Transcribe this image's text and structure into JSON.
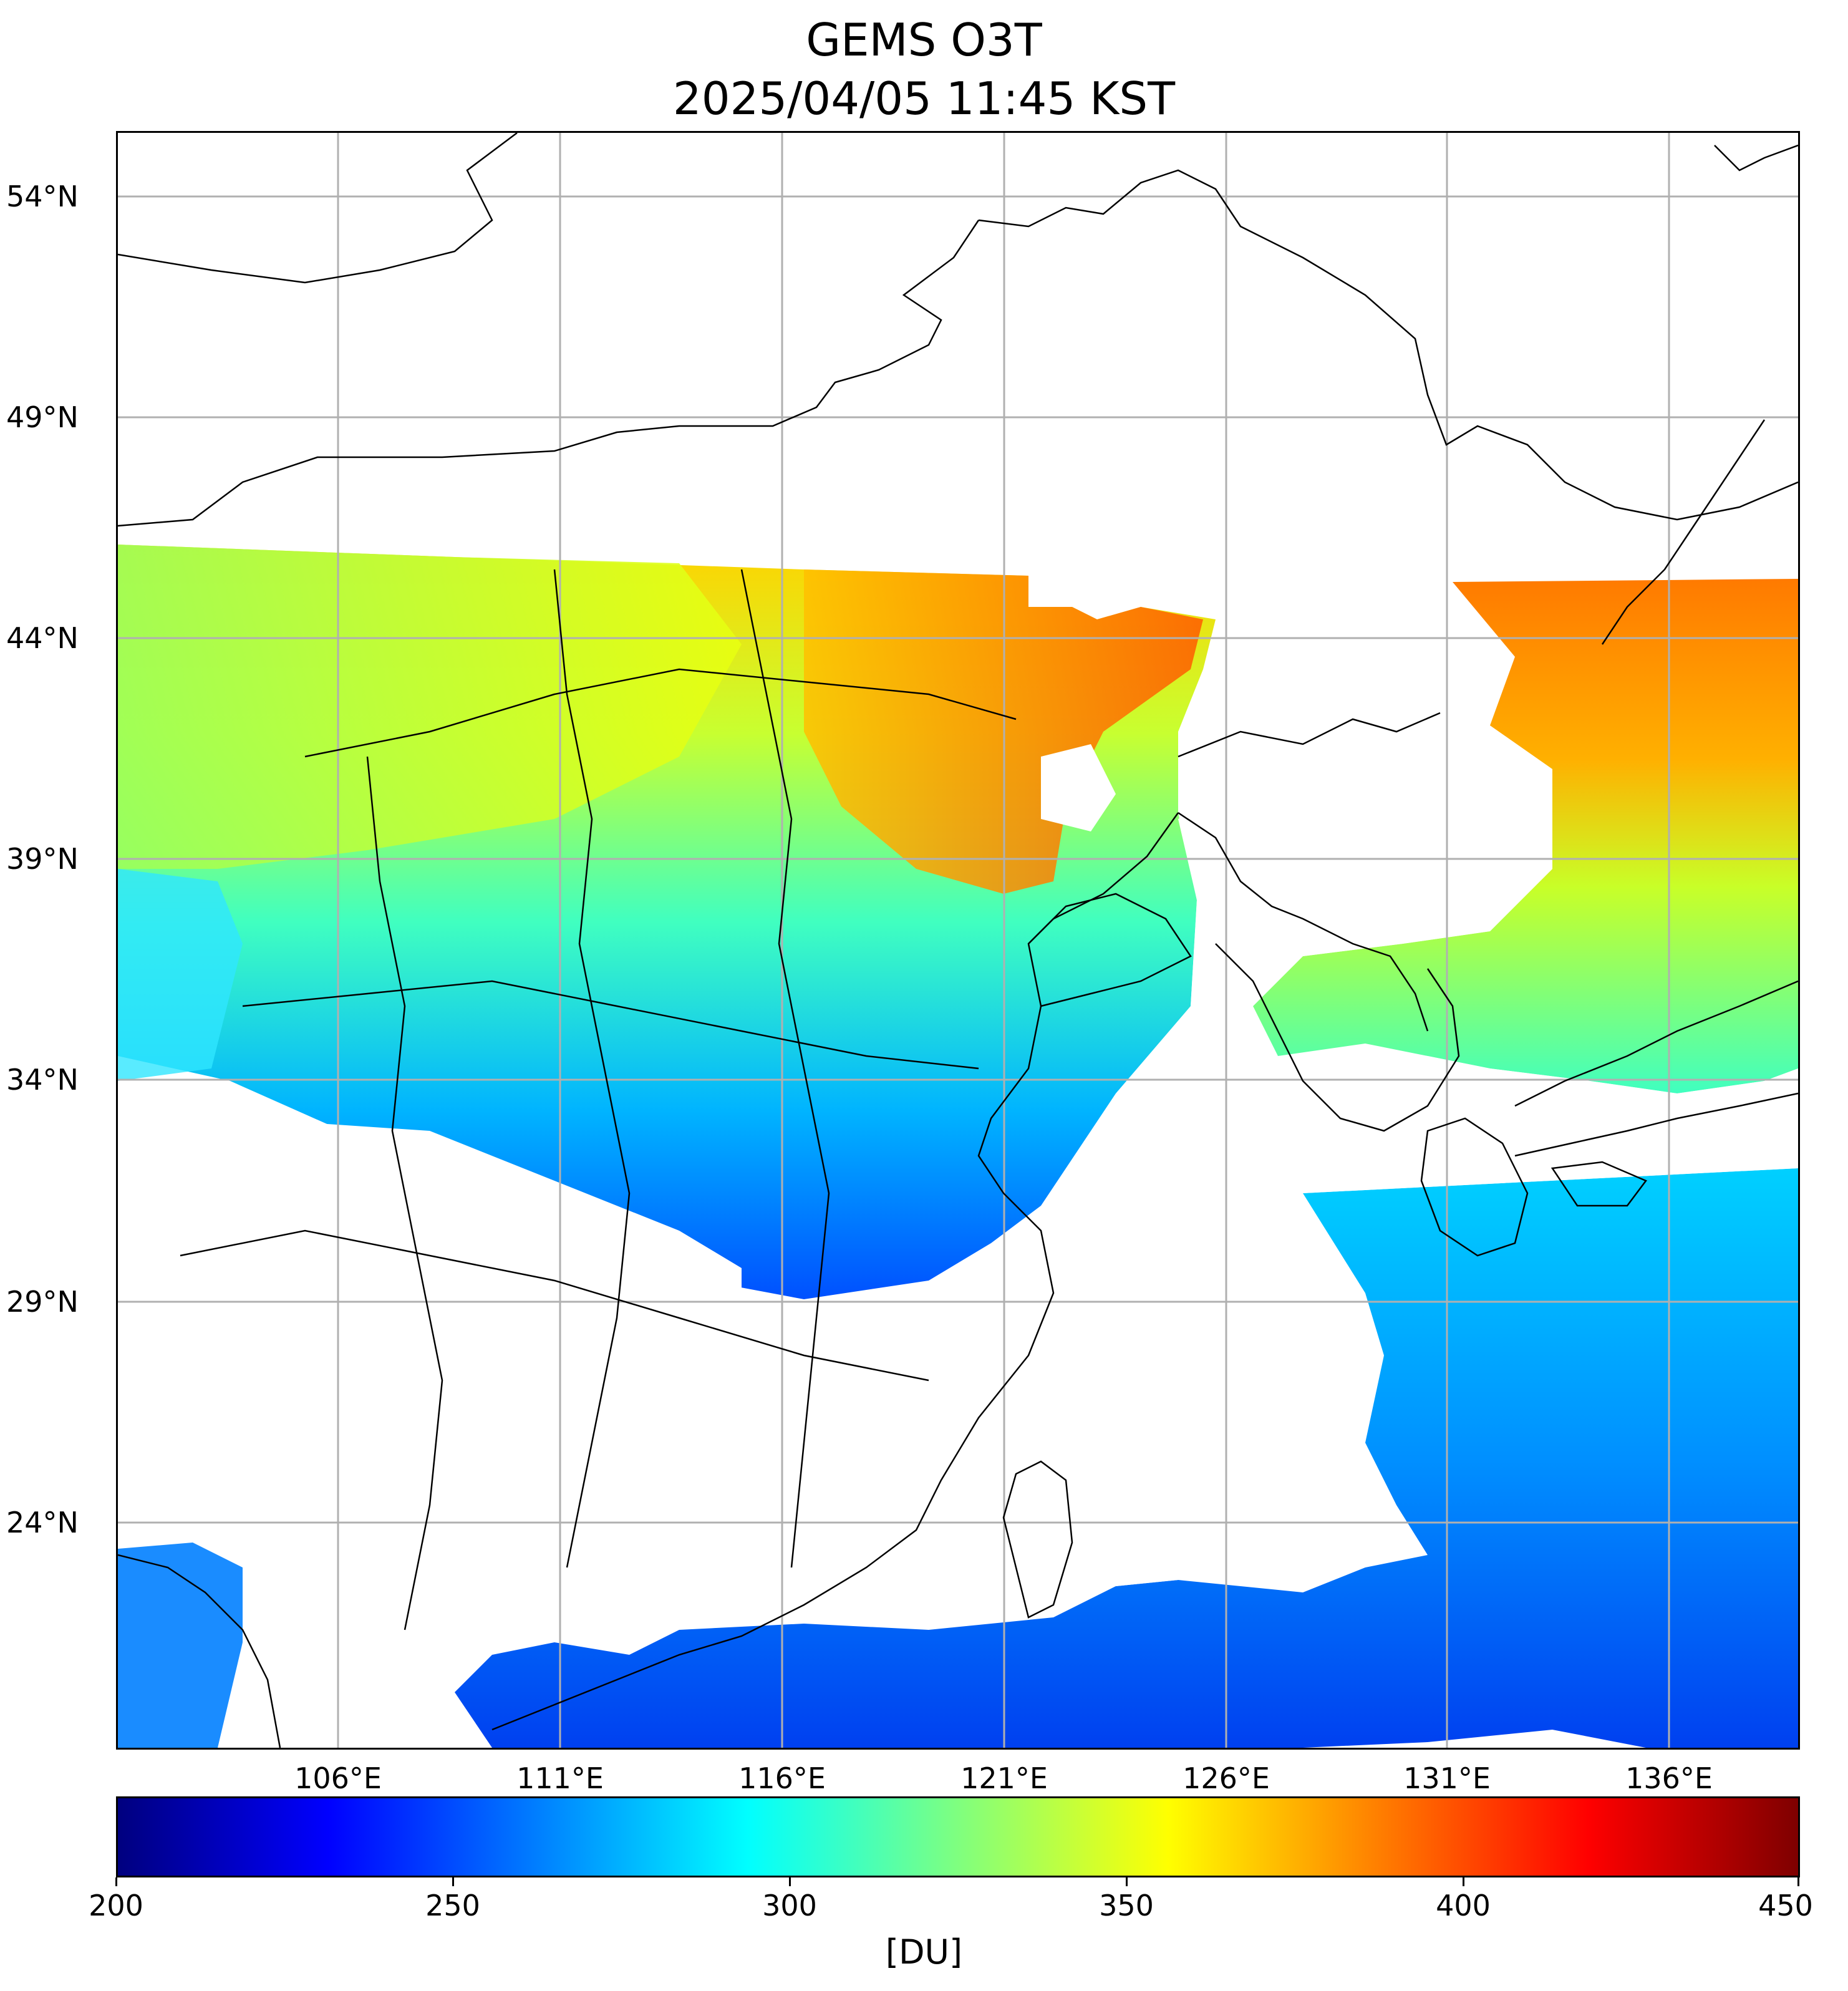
{
  "title": {
    "line1": "GEMS O3T",
    "line2": "2025/04/05 11:45 KST"
  },
  "map": {
    "lat_labels": [
      "54°N",
      "49°N",
      "44°N",
      "39°N",
      "34°N",
      "29°N",
      "24°N"
    ],
    "lon_labels": [
      "106°E",
      "111°E",
      "116°E",
      "121°E",
      "126°E",
      "131°E",
      "136°E"
    ],
    "gridlines": true,
    "no_data_color": "#ffffff",
    "ozone_field": {
      "description_levels_du": [
        250,
        275,
        300,
        325,
        350,
        370,
        390,
        410
      ],
      "north_band_max_du": 410,
      "south_band_min_du": 255
    }
  },
  "colorbar": {
    "colormap": "jet",
    "min": 200,
    "max": 450,
    "ticks": [
      "200",
      "250",
      "300",
      "350",
      "400",
      "450"
    ],
    "unit": "[DU]",
    "colors": [
      "#00007f",
      "#0000ff",
      "#007fff",
      "#00ffff",
      "#7fff7f",
      "#ffff00",
      "#ff7f00",
      "#ff0000",
      "#7f0000"
    ]
  }
}
